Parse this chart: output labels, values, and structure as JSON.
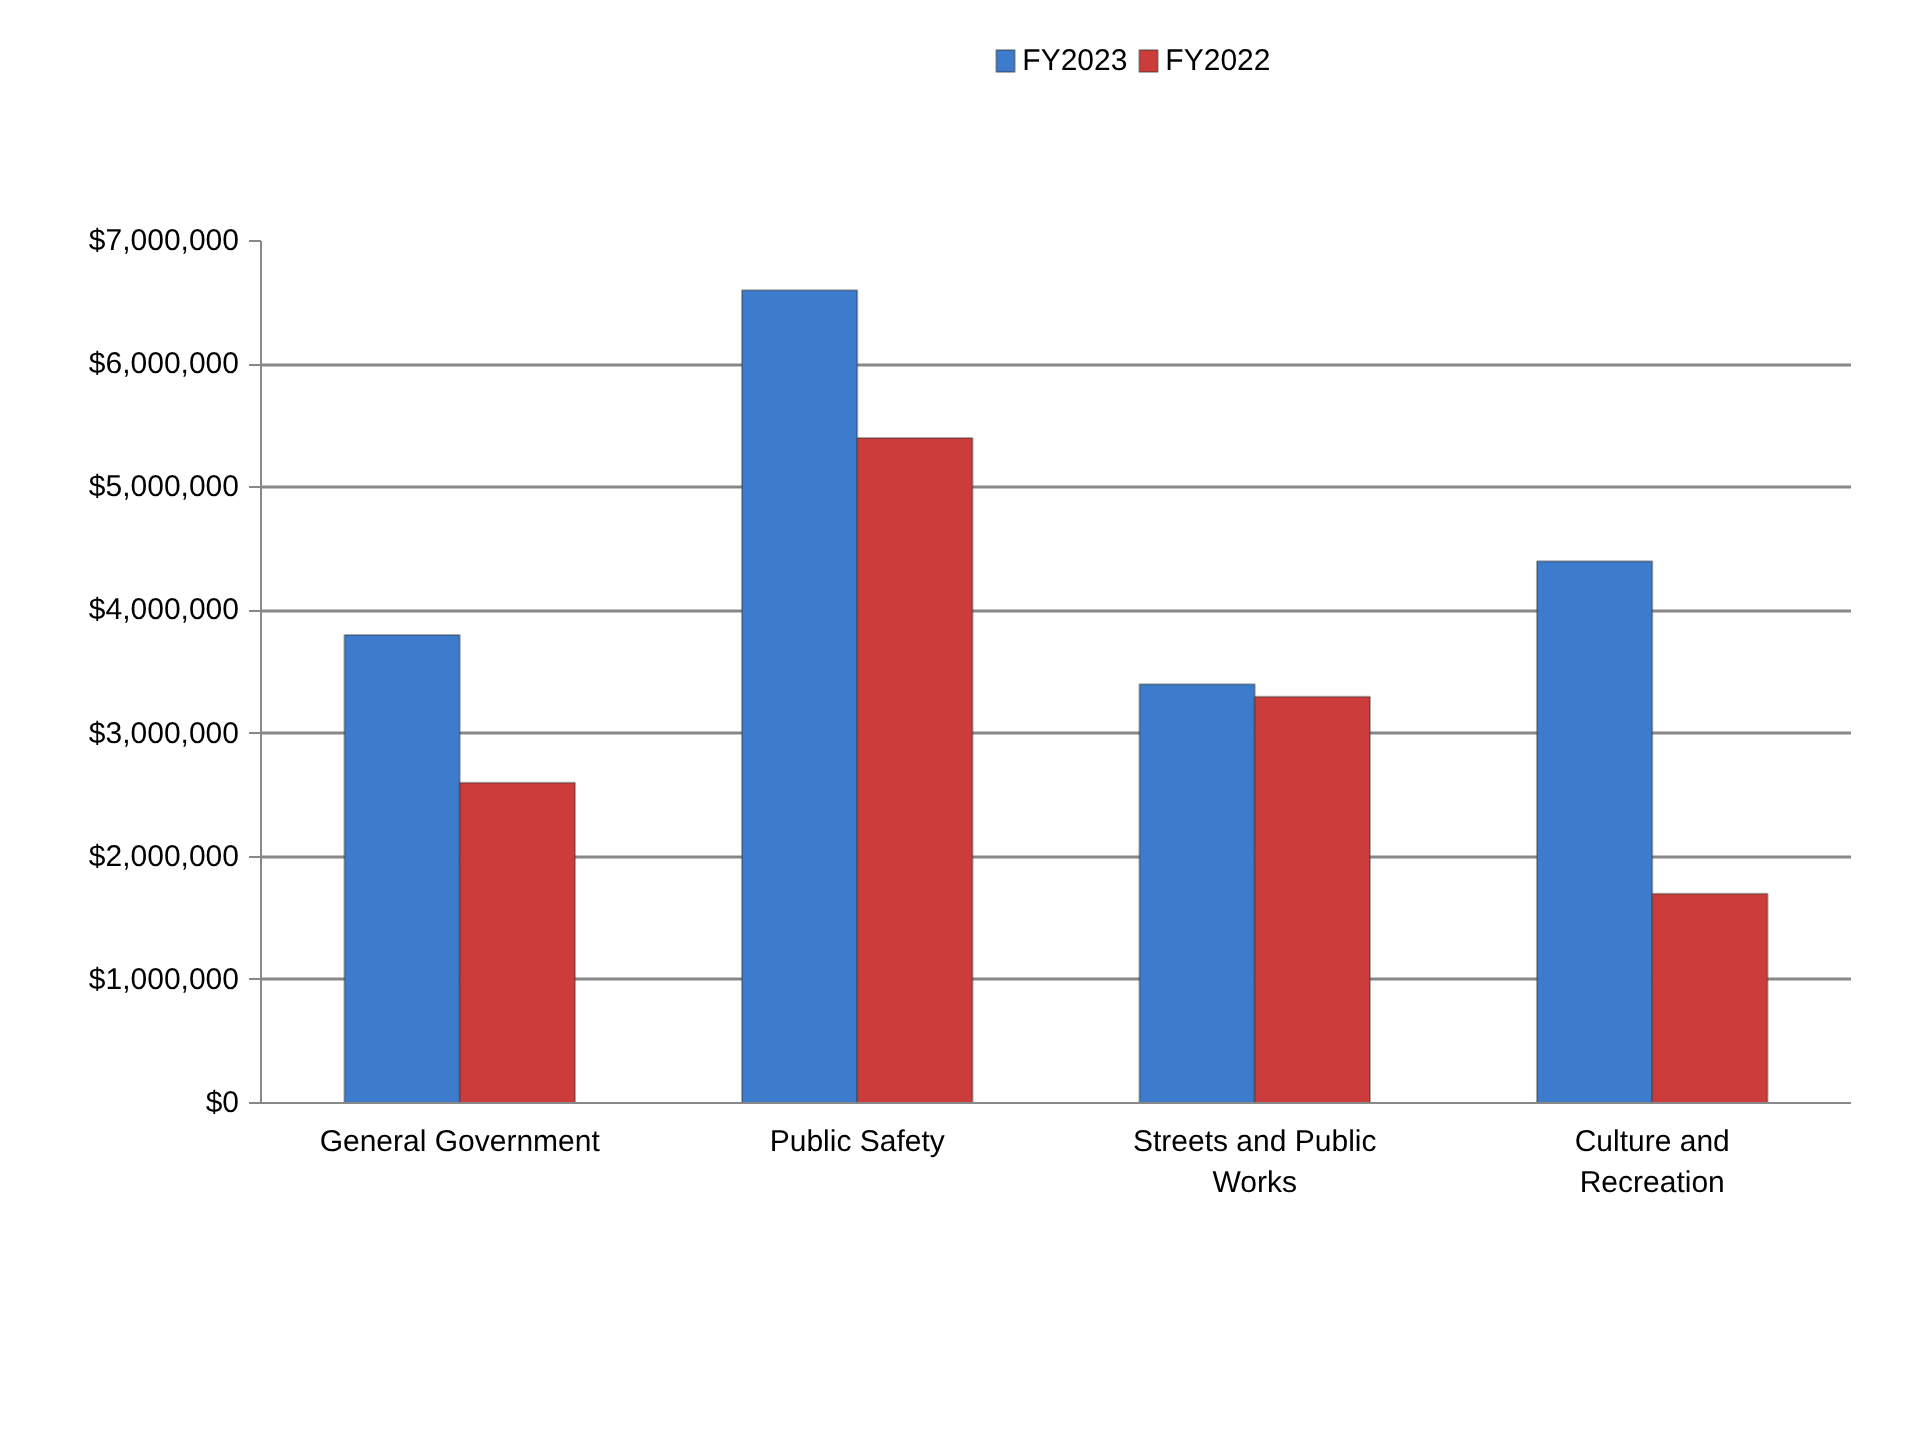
{
  "chart_data": {
    "type": "bar",
    "categories": [
      "General Government",
      "Public Safety",
      "Streets and Public Works",
      "Culture and Recreation"
    ],
    "series": [
      {
        "name": "FY2023",
        "color": "#3d7bcc",
        "values": [
          3800000,
          6600000,
          3400000,
          4400000
        ]
      },
      {
        "name": "FY2022",
        "color": "#cc3c3a",
        "values": [
          2600000,
          5400000,
          3300000,
          1700000
        ]
      }
    ],
    "ylim": [
      0,
      7000000
    ],
    "yticks": [
      {
        "value": 0,
        "label": "$0"
      },
      {
        "value": 1000000,
        "label": "$1,000,000"
      },
      {
        "value": 2000000,
        "label": "$2,000,000"
      },
      {
        "value": 3000000,
        "label": "$3,000,000"
      },
      {
        "value": 4000000,
        "label": "$4,000,000"
      },
      {
        "value": 5000000,
        "label": "$5,000,000"
      },
      {
        "value": 6000000,
        "label": "$6,000,000"
      },
      {
        "value": 7000000,
        "label": "$7,000,000"
      }
    ],
    "grid": "y",
    "legend": "top"
  }
}
